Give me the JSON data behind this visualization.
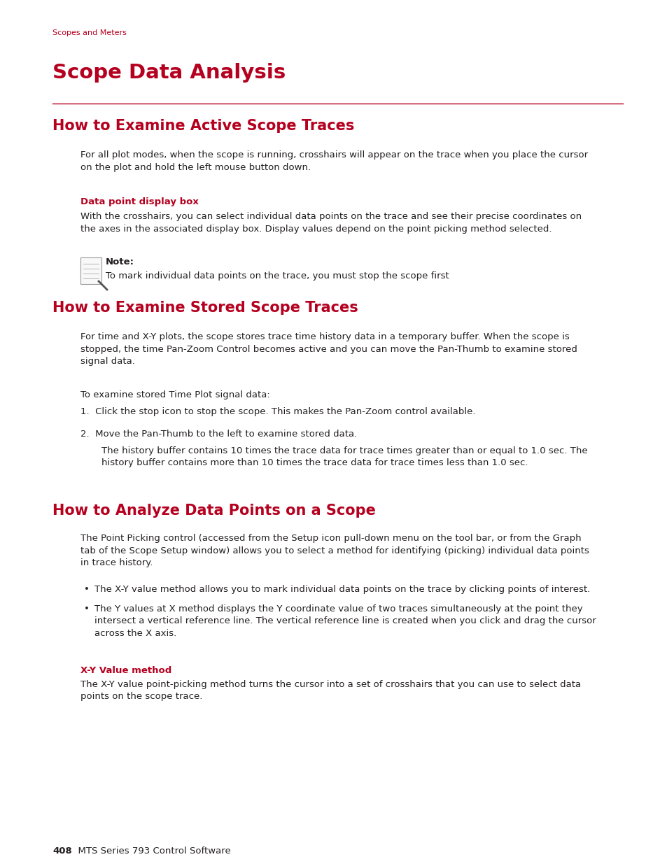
{
  "background_color": "#ffffff",
  "crimson": "#b5001f",
  "black": "#231f20",
  "page_label": "Scopes and Meters",
  "main_title": "Scope Data Analysis",
  "h2_1": "How to Examine Active Scope Traces",
  "h2_2": "How to Examine Stored Scope Traces",
  "h2_3": "How to Analyze Data Points on a Scope",
  "sub1": "Data point display box",
  "sub2": "X-Y Value method",
  "p1": "For all plot modes, when the scope is running, crosshairs will appear on the trace when you place the cursor\non the plot and hold the left mouse button down.",
  "p2": "With the crosshairs, you can select individual data points on the trace and see their precise coordinates on\nthe axes in the associated display box. Display values depend on the point picking method selected.",
  "note_label": "Note:",
  "note_text": "To mark individual data points on the trace, you must stop the scope first",
  "p3": "For time and X-Y plots, the scope stores trace time history data in a temporary buffer. When the scope is\nstopped, the time Pan-Zoom Control becomes active and you can move the Pan-Thumb to examine stored\nsignal data.",
  "p4": "To examine stored Time Plot signal data:",
  "step1": "1.  Click the stop icon to stop the scope. This makes the Pan-Zoom control available.",
  "step2": "2.  Move the Pan-Thumb to the left to examine stored data.",
  "p5": "The history buffer contains 10 times the trace data for trace times greater than or equal to 1.0 sec. The\nhistory buffer contains more than 10 times the trace data for trace times less than 1.0 sec.",
  "p6": "The Point Picking control (accessed from the Setup icon pull-down menu on the tool bar, or from the Graph\ntab of the Scope Setup window) allows you to select a method for identifying (picking) individual data points\nin trace history.",
  "bullet1": "The X-Y value method allows you to mark individual data points on the trace by clicking points of interest.",
  "bullet2": "The Y values at X method displays the Y coordinate value of two traces simultaneously at the point they\nintersect a vertical reference line. The vertical reference line is created when you click and drag the cursor\nacross the X axis.",
  "p7": "The X-Y value point-picking method turns the cursor into a set of crosshairs that you can use to select data\npoints on the scope trace.",
  "footer_num": "408",
  "footer_text": "  MTS Series 793 Control Software"
}
